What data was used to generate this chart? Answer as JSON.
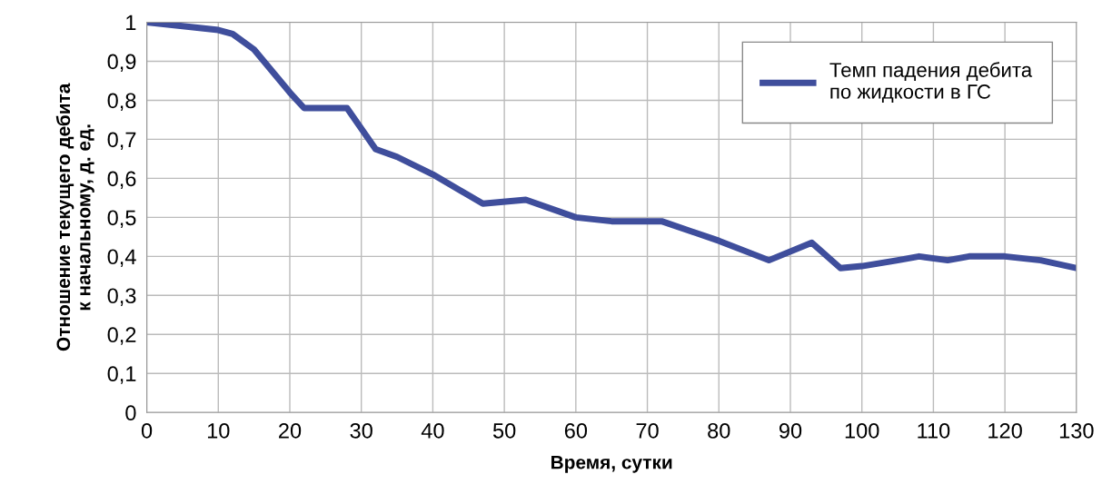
{
  "chart_data": {
    "type": "line",
    "xlabel": "Время, сутки",
    "ylabel": "Отношение текущего дебита\nк начальному, д. ед.",
    "x": [
      0,
      5,
      10,
      12,
      15,
      20,
      22,
      25,
      28,
      32,
      35,
      40,
      47,
      53,
      60,
      65,
      72,
      80,
      87,
      93,
      97,
      100,
      105,
      108,
      112,
      115,
      120,
      125,
      130
    ],
    "series": [
      {
        "name": "Темп падения дебита\nпо жидкости в ГС",
        "color": "#3f4e9c",
        "values": [
          1.0,
          0.99,
          0.98,
          0.97,
          0.93,
          0.82,
          0.78,
          0.78,
          0.78,
          0.675,
          0.655,
          0.61,
          0.535,
          0.545,
          0.5,
          0.49,
          0.49,
          0.44,
          0.39,
          0.435,
          0.37,
          0.375,
          0.39,
          0.4,
          0.39,
          0.4,
          0.4,
          0.39,
          0.37
        ]
      }
    ],
    "xlim": [
      0,
      130
    ],
    "xticks": [
      0,
      10,
      20,
      30,
      40,
      50,
      60,
      70,
      80,
      90,
      100,
      110,
      120,
      130
    ],
    "ylim": [
      0,
      1
    ],
    "yticks": [
      0,
      {
        "value": 0.1,
        "label": "0,1"
      },
      {
        "value": 0.2,
        "label": "0,2"
      },
      {
        "value": 0.3,
        "label": "0,3"
      },
      {
        "value": 0.4,
        "label": "0,4"
      },
      {
        "value": 0.5,
        "label": "0,5"
      },
      {
        "value": 0.6,
        "label": "0,6"
      },
      {
        "value": 0.7,
        "label": "0,7"
      },
      {
        "value": 0.8,
        "label": "0,8"
      },
      {
        "value": 0.9,
        "label": "0,9"
      },
      1
    ],
    "grid": true,
    "legend": "top right",
    "marker": "none",
    "line_style": "solid"
  }
}
